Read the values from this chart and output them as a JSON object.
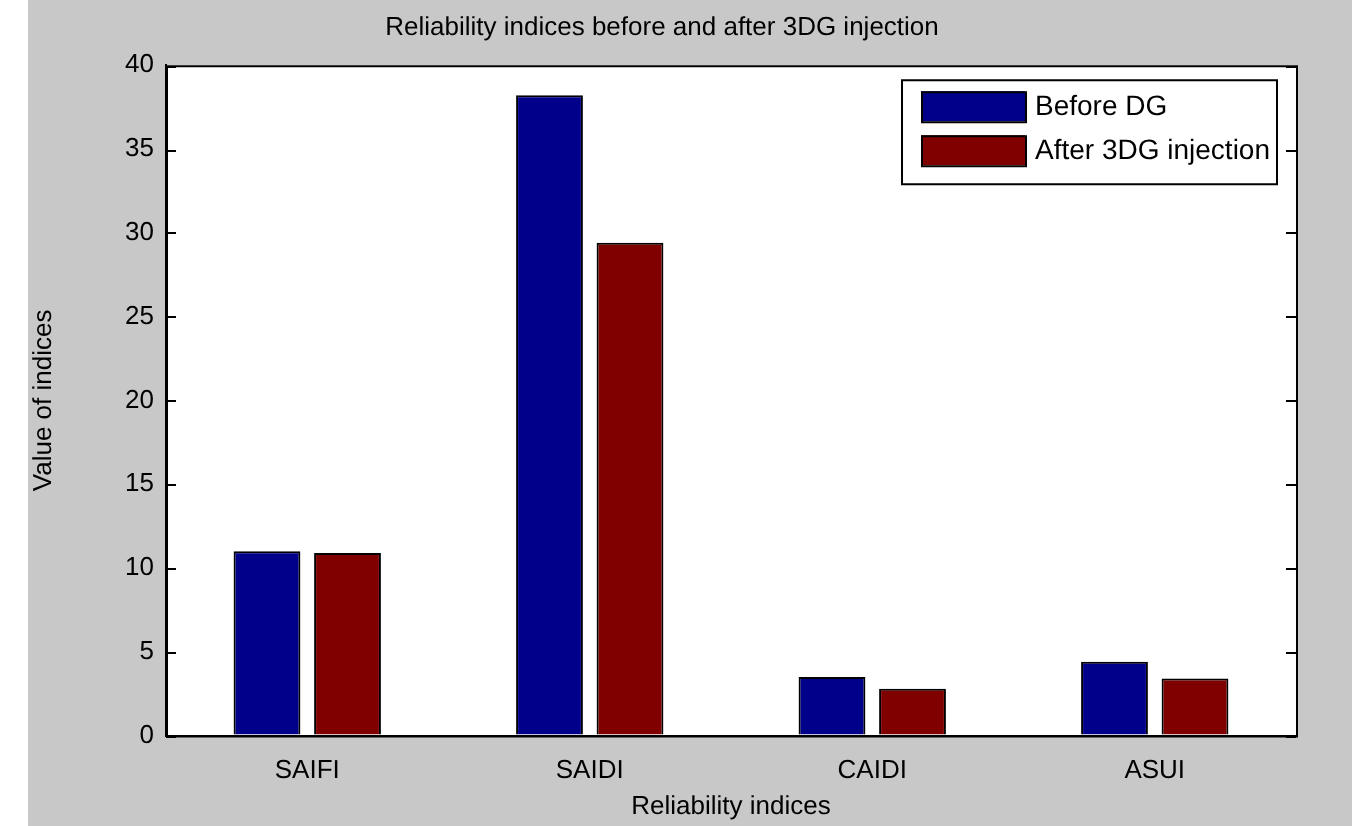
{
  "chart_data": {
    "type": "bar",
    "title": "Reliability indices before and after 3DG injection",
    "xlabel": "Reliability indices",
    "ylabel": "Value of indices",
    "categories": [
      "SAIFI",
      "SAIDI",
      "CAIDI",
      "ASUI"
    ],
    "series": [
      {
        "name": "Before DG",
        "color": "#00008b",
        "values": [
          11.0,
          38.2,
          3.5,
          4.4
        ]
      },
      {
        "name": "After 3DG injection",
        "color": "#800000",
        "values": [
          10.9,
          29.4,
          2.8,
          3.4
        ]
      }
    ],
    "ylim": [
      0,
      40
    ],
    "yticks": [
      0,
      5,
      10,
      15,
      20,
      25,
      30,
      35,
      40
    ],
    "grid": false,
    "legend": "top right"
  }
}
